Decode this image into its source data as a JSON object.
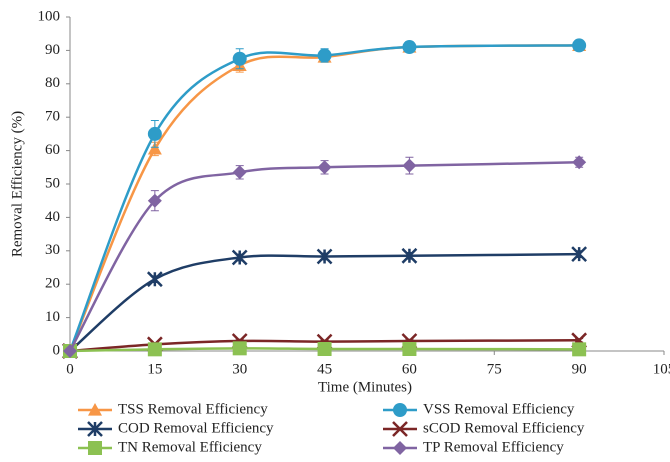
{
  "chart_data": {
    "type": "line",
    "x_label": "Time (Minutes)",
    "y_label": "Removal Efficiency (%)",
    "x": [
      0,
      15,
      30,
      45,
      60,
      90
    ],
    "xlim": [
      0,
      105
    ],
    "xticks": [
      0,
      15,
      30,
      45,
      60,
      75,
      90,
      105
    ],
    "ylim": [
      0,
      100
    ],
    "yticks": [
      0,
      10,
      20,
      30,
      40,
      50,
      60,
      70,
      80,
      90,
      100
    ],
    "grid": false,
    "legend": "bottom",
    "series": [
      {
        "name": "TSS Removal Efficiency",
        "color": "#f79646",
        "marker": "triangle",
        "values": [
          0,
          60.5,
          85.5,
          88,
          91,
          91.5
        ],
        "errors": [
          0,
          2,
          2,
          1.5,
          1,
          1
        ]
      },
      {
        "name": "VSS Removal Efficiency",
        "color": "#2e9cc8",
        "marker": "circle",
        "values": [
          0,
          65,
          87.5,
          88.5,
          91,
          91.5
        ],
        "errors": [
          0,
          4,
          3,
          2,
          1,
          1
        ]
      },
      {
        "name": "COD Removal Efficiency",
        "color": "#1f3d66",
        "marker": "star",
        "values": [
          0,
          21.5,
          28,
          28.3,
          28.5,
          29
        ],
        "errors": [
          0,
          1,
          1,
          1,
          1,
          1
        ]
      },
      {
        "name": "sCOD Removal Efficiency",
        "color": "#7b2626",
        "marker": "x",
        "values": [
          0,
          2,
          3,
          2.8,
          3,
          3.2
        ],
        "errors": [
          0,
          0.5,
          0.5,
          0.5,
          0.5,
          0.5
        ]
      },
      {
        "name": "TN Removal Efficiency",
        "color": "#8cc152",
        "marker": "square",
        "values": [
          0,
          0.5,
          0.8,
          0.6,
          0.6,
          0.5
        ],
        "errors": [
          0,
          0.2,
          0.2,
          0.2,
          0.2,
          0.2
        ]
      },
      {
        "name": "TP Removal Efficiency",
        "color": "#8064a2",
        "marker": "diamond",
        "values": [
          0,
          45,
          53.5,
          55,
          55.5,
          56.5
        ],
        "errors": [
          0,
          3,
          2,
          2,
          2.5,
          1.5
        ]
      }
    ]
  }
}
